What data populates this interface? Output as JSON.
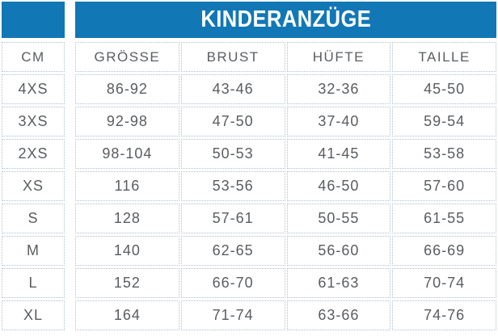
{
  "header": {
    "title": "KINDERANZÜGE"
  },
  "colors": {
    "accent_blue": "#1277b5",
    "cell_text_gray": "#595d60",
    "dotted_border": "#aec0cb",
    "header_text": "#ffffff"
  },
  "chart_data": {
    "type": "table",
    "title": "KINDERANZÜGE",
    "columns": {
      "size": "CM",
      "groesse": "GRÖSSE",
      "brust": "BRUST",
      "huefte": "HÜFTE",
      "taille": "TAILLE"
    },
    "rows": [
      {
        "size": "4XS",
        "groesse": "86-92",
        "brust": "43-46",
        "huefte": "32-36",
        "taille": "45-50"
      },
      {
        "size": "3XS",
        "groesse": "92-98",
        "brust": "47-50",
        "huefte": "37-40",
        "taille": "59-54"
      },
      {
        "size": "2XS",
        "groesse": "98-104",
        "brust": "50-53",
        "huefte": "41-45",
        "taille": "53-58"
      },
      {
        "size": "XS",
        "groesse": "116",
        "brust": "53-56",
        "huefte": "46-50",
        "taille": "57-60"
      },
      {
        "size": "S",
        "groesse": "128",
        "brust": "57-61",
        "huefte": "50-55",
        "taille": "61-55"
      },
      {
        "size": "M",
        "groesse": "140",
        "brust": "62-65",
        "huefte": "56-60",
        "taille": "66-69"
      },
      {
        "size": "L",
        "groesse": "152",
        "brust": "66-70",
        "huefte": "61-63",
        "taille": "70-74"
      },
      {
        "size": "XL",
        "groesse": "164",
        "brust": "71-74",
        "huefte": "63-66",
        "taille": "74-76"
      }
    ]
  }
}
